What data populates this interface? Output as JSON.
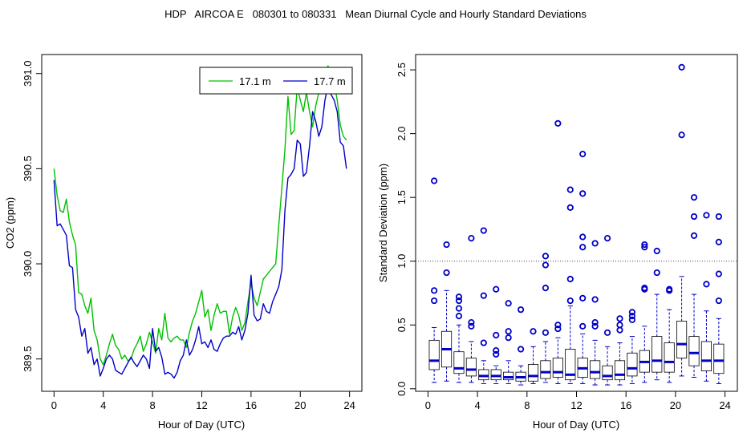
{
  "figure_title": "HDP   AIRCOA E   080301 to 080331   Mean Diurnal Cycle and Hourly Standard Deviations",
  "chart_data": [
    {
      "type": "line",
      "xlabel": "Hour of Day (UTC)",
      "ylabel": "CO2 (ppm)",
      "xlim": [
        -1,
        25
      ],
      "ylim": [
        389.33,
        391.1
      ],
      "xticks": [
        0,
        4,
        8,
        12,
        16,
        20,
        24
      ],
      "yticks": [
        389.5,
        390.0,
        390.5,
        391.0
      ],
      "ytick_labels": [
        "389.5",
        "390.0",
        "390.5",
        "391.0"
      ],
      "legend_position": "top-right",
      "series": [
        {
          "name": "17.1 m",
          "color": "#00c000",
          "x": [
            0.0,
            0.25,
            0.5,
            0.75,
            1.0,
            1.25,
            1.5,
            1.75,
            2.0,
            2.25,
            2.5,
            2.75,
            3.0,
            3.25,
            3.5,
            3.75,
            4.0,
            4.25,
            4.5,
            4.75,
            5.0,
            5.25,
            5.5,
            5.75,
            6.0,
            6.25,
            6.5,
            6.75,
            7.0,
            7.25,
            7.5,
            7.75,
            8.0,
            8.25,
            8.5,
            8.75,
            9.0,
            9.25,
            9.5,
            9.75,
            10.0,
            10.25,
            10.5,
            10.75,
            11.0,
            11.25,
            11.5,
            11.75,
            12.0,
            12.25,
            12.5,
            12.75,
            13.0,
            13.25,
            13.5,
            13.75,
            14.0,
            14.25,
            14.5,
            14.75,
            15.0,
            15.25,
            15.5,
            15.75,
            16.0,
            16.25,
            16.5,
            16.75,
            17.0,
            17.25,
            17.5,
            17.75,
            18.0,
            18.25,
            18.5,
            18.75,
            19.0,
            19.25,
            19.5,
            19.75,
            20.0,
            20.25,
            20.5,
            20.75,
            21.0,
            21.25,
            21.5,
            21.75,
            22.0,
            22.25,
            22.5,
            22.75,
            23.0,
            23.25,
            23.5,
            23.75
          ],
          "values": [
            390.5,
            390.36,
            390.28,
            390.27,
            390.34,
            390.22,
            390.15,
            390.1,
            389.85,
            389.84,
            389.78,
            389.74,
            389.82,
            389.65,
            389.6,
            389.5,
            389.47,
            389.52,
            389.58,
            389.63,
            389.57,
            389.55,
            389.5,
            389.52,
            389.49,
            389.5,
            389.55,
            389.58,
            389.62,
            389.54,
            389.58,
            389.64,
            389.59,
            389.53,
            389.66,
            389.6,
            389.74,
            389.61,
            389.59,
            389.61,
            389.62,
            389.6,
            389.6,
            389.56,
            389.64,
            389.7,
            389.74,
            389.8,
            389.86,
            389.72,
            389.76,
            389.65,
            389.73,
            389.79,
            389.74,
            389.75,
            389.75,
            389.63,
            389.72,
            389.77,
            389.73,
            389.65,
            389.69,
            389.8,
            389.9,
            389.82,
            389.78,
            389.85,
            389.92,
            389.94,
            389.96,
            389.98,
            390.0,
            390.2,
            390.4,
            390.6,
            390.88,
            390.68,
            390.7,
            390.93,
            390.86,
            390.8,
            390.9,
            390.8,
            390.72,
            390.83,
            390.9,
            390.94,
            390.98,
            391.04,
            390.98,
            390.95,
            390.86,
            390.73,
            390.67,
            390.65
          ]
        },
        {
          "name": "17.7 m",
          "color": "#0000c8",
          "x": [
            0.0,
            0.25,
            0.5,
            0.75,
            1.0,
            1.25,
            1.5,
            1.75,
            2.0,
            2.25,
            2.5,
            2.75,
            3.0,
            3.25,
            3.5,
            3.75,
            4.0,
            4.25,
            4.5,
            4.75,
            5.0,
            5.25,
            5.5,
            5.75,
            6.0,
            6.25,
            6.5,
            6.75,
            7.0,
            7.25,
            7.5,
            7.75,
            8.0,
            8.25,
            8.5,
            8.75,
            9.0,
            9.25,
            9.5,
            9.75,
            10.0,
            10.25,
            10.5,
            10.75,
            11.0,
            11.25,
            11.5,
            11.75,
            12.0,
            12.25,
            12.5,
            12.75,
            13.0,
            13.25,
            13.5,
            13.75,
            14.0,
            14.25,
            14.5,
            14.75,
            15.0,
            15.25,
            15.5,
            15.75,
            16.0,
            16.25,
            16.5,
            16.75,
            17.0,
            17.25,
            17.5,
            17.75,
            18.0,
            18.25,
            18.5,
            18.75,
            19.0,
            19.25,
            19.5,
            19.75,
            20.0,
            20.25,
            20.5,
            20.75,
            21.0,
            21.25,
            21.5,
            21.75,
            22.0,
            22.25,
            22.5,
            22.75,
            23.0,
            23.25,
            23.5,
            23.75
          ],
          "values": [
            390.44,
            390.2,
            390.21,
            390.18,
            390.15,
            389.99,
            389.98,
            389.76,
            389.72,
            389.62,
            389.66,
            389.53,
            389.56,
            389.47,
            389.5,
            389.41,
            389.45,
            389.5,
            389.52,
            389.5,
            389.44,
            389.43,
            389.42,
            389.45,
            389.48,
            389.51,
            389.48,
            389.46,
            389.49,
            389.52,
            389.5,
            389.45,
            389.66,
            389.54,
            389.56,
            389.51,
            389.42,
            389.43,
            389.42,
            389.4,
            389.43,
            389.49,
            389.52,
            389.6,
            389.52,
            389.55,
            389.6,
            389.67,
            389.58,
            389.59,
            389.56,
            389.6,
            389.55,
            389.54,
            389.58,
            389.61,
            389.62,
            389.62,
            389.64,
            389.63,
            389.67,
            389.6,
            389.65,
            389.74,
            389.94,
            389.73,
            389.7,
            389.71,
            389.79,
            389.75,
            389.74,
            389.8,
            389.84,
            389.88,
            389.97,
            390.28,
            390.45,
            390.47,
            390.5,
            390.65,
            390.63,
            390.46,
            390.48,
            390.62,
            390.8,
            390.75,
            390.67,
            390.72,
            390.86,
            390.94,
            390.89,
            390.86,
            390.8,
            390.64,
            390.62,
            390.5
          ]
        }
      ]
    },
    {
      "type": "box",
      "xlabel": "Hour of Day (UTC)",
      "ylabel": "Standard Deviation (ppm)",
      "xlim": [
        -1,
        25
      ],
      "ylim": [
        -0.02,
        2.62
      ],
      "xticks": [
        0,
        4,
        8,
        12,
        16,
        20,
        24
      ],
      "yticks": [
        0.0,
        0.5,
        1.0,
        1.5,
        2.0,
        2.5
      ],
      "ytick_labels": [
        "0.0",
        "0.5",
        "1.0",
        "1.5",
        "2.0",
        "2.5"
      ],
      "reference_line": 1.0,
      "box_color": "#000000",
      "whisker_color": "#0000c8",
      "median_color": "#0000c8",
      "outlier_color": "#0000c8",
      "boxes": [
        {
          "x": 0.5,
          "min": 0.05,
          "q1": 0.15,
          "median": 0.22,
          "q3": 0.38,
          "max": 0.48,
          "outliers": [
            0.69,
            0.77,
            1.63
          ]
        },
        {
          "x": 1.5,
          "min": 0.06,
          "q1": 0.17,
          "median": 0.31,
          "q3": 0.45,
          "max": 0.77,
          "outliers": [
            0.91,
            1.13
          ]
        },
        {
          "x": 2.5,
          "min": 0.05,
          "q1": 0.12,
          "median": 0.16,
          "q3": 0.29,
          "max": 0.5,
          "outliers": [
            0.57,
            0.63,
            0.69,
            0.72
          ]
        },
        {
          "x": 3.5,
          "min": 0.05,
          "q1": 0.1,
          "median": 0.15,
          "q3": 0.24,
          "max": 0.37,
          "outliers": [
            0.49,
            0.52,
            1.18
          ]
        },
        {
          "x": 4.5,
          "min": 0.04,
          "q1": 0.07,
          "median": 0.1,
          "q3": 0.15,
          "max": 0.22,
          "outliers": [
            0.36,
            0.73,
            1.24
          ]
        },
        {
          "x": 5.5,
          "min": 0.04,
          "q1": 0.07,
          "median": 0.1,
          "q3": 0.15,
          "max": 0.18,
          "outliers": [
            0.27,
            0.3,
            0.42,
            0.78
          ]
        },
        {
          "x": 6.5,
          "min": 0.04,
          "q1": 0.07,
          "median": 0.09,
          "q3": 0.13,
          "max": 0.22,
          "outliers": [
            0.4,
            0.45,
            0.67
          ]
        },
        {
          "x": 7.5,
          "min": 0.03,
          "q1": 0.06,
          "median": 0.09,
          "q3": 0.13,
          "max": 0.18,
          "outliers": [
            0.31,
            0.62
          ]
        },
        {
          "x": 8.5,
          "min": 0.04,
          "q1": 0.06,
          "median": 0.1,
          "q3": 0.19,
          "max": 0.33,
          "outliers": [
            0.45
          ]
        },
        {
          "x": 9.5,
          "min": 0.05,
          "q1": 0.08,
          "median": 0.13,
          "q3": 0.22,
          "max": 0.37,
          "outliers": [
            0.44,
            0.79,
            0.97,
            1.04
          ]
        },
        {
          "x": 10.5,
          "min": 0.04,
          "q1": 0.09,
          "median": 0.13,
          "q3": 0.24,
          "max": 0.4,
          "outliers": [
            0.47,
            0.5,
            2.08
          ]
        },
        {
          "x": 11.5,
          "min": 0.04,
          "q1": 0.07,
          "median": 0.11,
          "q3": 0.31,
          "max": 0.65,
          "outliers": [
            0.69,
            0.86,
            1.42,
            1.56
          ]
        },
        {
          "x": 12.5,
          "min": 0.04,
          "q1": 0.09,
          "median": 0.16,
          "q3": 0.24,
          "max": 0.43,
          "outliers": [
            0.49,
            0.71,
            1.11,
            1.19,
            1.53,
            1.84
          ]
        },
        {
          "x": 13.5,
          "min": 0.03,
          "q1": 0.08,
          "median": 0.13,
          "q3": 0.22,
          "max": 0.38,
          "outliers": [
            0.49,
            0.52,
            0.7,
            1.14
          ]
        },
        {
          "x": 14.5,
          "min": 0.03,
          "q1": 0.07,
          "median": 0.1,
          "q3": 0.18,
          "max": 0.33,
          "outliers": [
            0.44,
            1.18
          ]
        },
        {
          "x": 15.5,
          "min": 0.03,
          "q1": 0.07,
          "median": 0.11,
          "q3": 0.22,
          "max": 0.36,
          "outliers": [
            0.46,
            0.5,
            0.55
          ]
        },
        {
          "x": 16.5,
          "min": 0.04,
          "q1": 0.1,
          "median": 0.16,
          "q3": 0.28,
          "max": 0.41,
          "outliers": [
            0.54,
            0.57,
            0.6
          ]
        },
        {
          "x": 17.5,
          "min": 0.05,
          "q1": 0.13,
          "median": 0.21,
          "q3": 0.3,
          "max": 0.49,
          "outliers": [
            0.78,
            0.79,
            1.11,
            1.13
          ]
        },
        {
          "x": 18.5,
          "min": 0.07,
          "q1": 0.13,
          "median": 0.22,
          "q3": 0.41,
          "max": 0.74,
          "outliers": [
            0.91,
            1.08
          ]
        },
        {
          "x": 19.5,
          "min": 0.05,
          "q1": 0.13,
          "median": 0.21,
          "q3": 0.36,
          "max": 0.62,
          "outliers": [
            0.77,
            0.78
          ]
        },
        {
          "x": 20.5,
          "min": 0.1,
          "q1": 0.24,
          "median": 0.35,
          "q3": 0.53,
          "max": 0.88,
          "outliers": [
            1.99,
            2.52
          ]
        },
        {
          "x": 21.5,
          "min": 0.09,
          "q1": 0.18,
          "median": 0.28,
          "q3": 0.41,
          "max": 0.74,
          "outliers": [
            1.2,
            1.35,
            1.5
          ]
        },
        {
          "x": 22.5,
          "min": 0.06,
          "q1": 0.14,
          "median": 0.22,
          "q3": 0.37,
          "max": 0.61,
          "outliers": [
            0.82,
            1.36
          ]
        },
        {
          "x": 23.5,
          "min": 0.04,
          "q1": 0.12,
          "median": 0.22,
          "q3": 0.35,
          "max": 0.55,
          "outliers": [
            0.69,
            0.9,
            1.15,
            1.35
          ]
        }
      ]
    }
  ]
}
